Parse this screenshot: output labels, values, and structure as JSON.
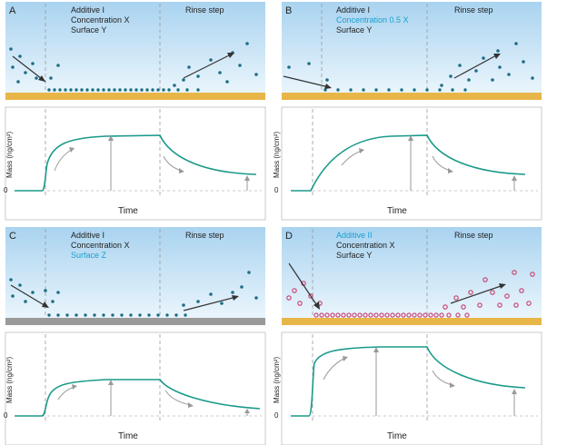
{
  "colors": {
    "sky_top": "#a9d3f0",
    "sky_bottom": "#eaf5fc",
    "surface_gold": "#e8b548",
    "surface_gray": "#9a9a9a",
    "curve": "#1a9a8a",
    "dot_dark": "#1e6f86",
    "dot_pink": "#c83c6e",
    "highlight": "#1aa0d0",
    "arrow_dark": "#333333",
    "arrow_gray": "#9a9a9a"
  },
  "panels": [
    {
      "letter": "A",
      "line1": "Additive I",
      "line2": "Concentration X",
      "line3": "Surface Y",
      "rinse": "Rinse step",
      "ylabel": "Mass (ng/cm²)",
      "zero": "0",
      "xlabel": "Time",
      "highlight": []
    },
    {
      "letter": "B",
      "line1": "Additive I",
      "line2": "Concentration 0.5 X",
      "line3": "Surface Y",
      "rinse": "Rinse step",
      "ylabel": "Mass (ng/cm²)",
      "zero": "0",
      "xlabel": "Time",
      "highlight": [
        "line2"
      ]
    },
    {
      "letter": "C",
      "line1": "Additive I",
      "line2": "Concentration X",
      "line3": "Surface Z",
      "rinse": "Rinse step",
      "ylabel": "Mass (ng/cm²)",
      "zero": "0",
      "xlabel": "Time",
      "highlight": [
        "line3"
      ]
    },
    {
      "letter": "D",
      "line1": "Additive II",
      "line2": "Concentration X",
      "line3": "Surface Y",
      "rinse": "Rinse step",
      "ylabel": "Mass (ng/cm²)",
      "zero": "0",
      "xlabel": "Time",
      "highlight": [
        "line1"
      ]
    }
  ]
}
